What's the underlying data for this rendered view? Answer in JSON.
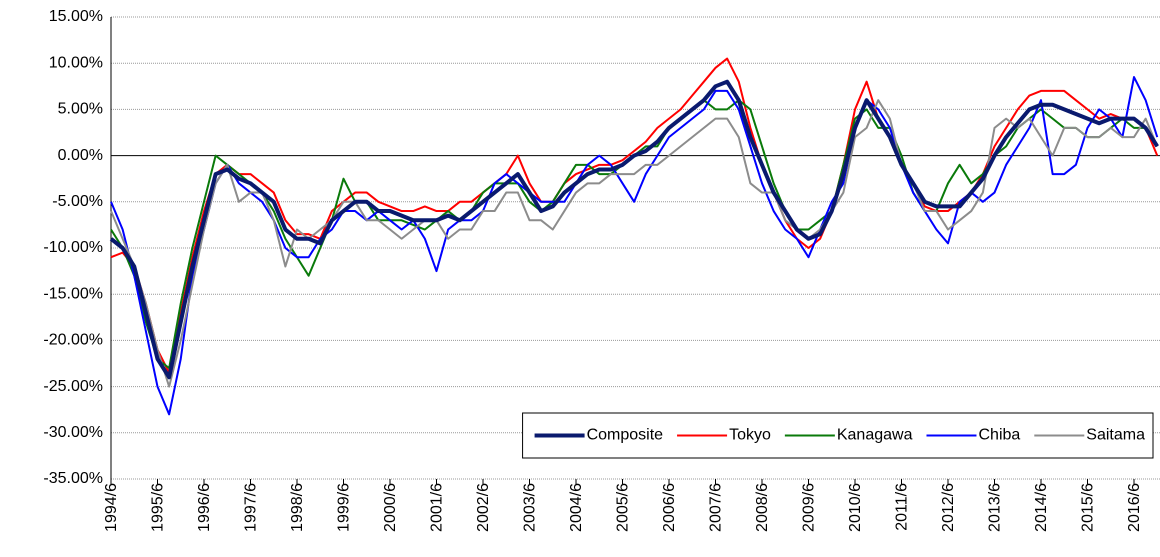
{
  "chart_data": {
    "type": "line",
    "categories": [
      "1994/6",
      null,
      null,
      null,
      "1995/6",
      null,
      null,
      null,
      "1996/6",
      null,
      null,
      null,
      "1997/6",
      null,
      null,
      null,
      "1998/6",
      null,
      null,
      null,
      "1999/6",
      null,
      null,
      null,
      "2000/6",
      null,
      null,
      null,
      "2001/6",
      null,
      null,
      null,
      "2002/6",
      null,
      null,
      null,
      "2003/6",
      null,
      null,
      null,
      "2004/6",
      null,
      null,
      null,
      "2005/6",
      null,
      null,
      null,
      "2006/6",
      null,
      null,
      null,
      "2007/6",
      null,
      null,
      null,
      "2008/6",
      null,
      null,
      null,
      "2009/6",
      null,
      null,
      null,
      "2010/6",
      null,
      null,
      null,
      "2011/6",
      null,
      null,
      null,
      "2012/6",
      null,
      null,
      null,
      "2013/6",
      null,
      null,
      null,
      "2014/6",
      null,
      null,
      null,
      "2015/6",
      null,
      null,
      null,
      "2016/6",
      null,
      null
    ],
    "series": [
      {
        "name": "Composite",
        "color": "#0a1a6e",
        "width": 4,
        "values": [
          -9,
          -10,
          -12,
          -17,
          -22,
          -24,
          -18,
          -12,
          -7,
          -2,
          -1.5,
          -2.5,
          -3,
          -4,
          -5,
          -8,
          -9,
          -9,
          -9.5,
          -7,
          -6,
          -5,
          -5,
          -6,
          -6,
          -6.5,
          -7,
          -7,
          -7,
          -6.5,
          -7,
          -6,
          -5,
          -4,
          -3,
          -2,
          -4,
          -6,
          -5.5,
          -4,
          -3,
          -2,
          -1.5,
          -1.5,
          -1,
          0,
          0.5,
          1.5,
          3,
          4,
          5,
          6,
          7.5,
          8,
          6,
          2,
          -1,
          -4,
          -6,
          -8,
          -9,
          -8.5,
          -6,
          -2,
          3,
          6,
          4,
          2,
          -1,
          -3,
          -5,
          -5.5,
          -5.5,
          -5.5,
          -4,
          -2.5,
          0,
          2,
          3.5,
          5,
          5.5,
          5.5,
          5,
          4.5,
          4,
          3.5,
          4,
          4,
          4,
          3,
          1
        ]
      },
      {
        "name": "Tokyo",
        "color": "#ff0000",
        "width": 2,
        "values": [
          -11,
          -10.5,
          -12,
          -16,
          -21,
          -23.5,
          -17,
          -11,
          -6,
          -2,
          -1,
          -2,
          -2,
          -3,
          -4,
          -7,
          -8.5,
          -8.5,
          -9,
          -6,
          -5,
          -4,
          -4,
          -5,
          -5.5,
          -6,
          -6,
          -5.5,
          -6,
          -6,
          -5,
          -5,
          -4,
          -3,
          -2,
          0,
          -3,
          -5,
          -5,
          -3,
          -2,
          -1.5,
          -1,
          -1,
          -0.5,
          0.5,
          1.5,
          3,
          4,
          5,
          6.5,
          8,
          9.5,
          10.5,
          8,
          3,
          -1,
          -4,
          -7,
          -9,
          -10,
          -9,
          -6,
          -1,
          5,
          8,
          4,
          2,
          -1,
          -3,
          -5.5,
          -6,
          -6,
          -5,
          -4,
          -2,
          1,
          3,
          5,
          6.5,
          7,
          7,
          7,
          6,
          5,
          4,
          4.5,
          4,
          4,
          3,
          0
        ]
      },
      {
        "name": "Kanagawa",
        "color": "#0a7a0a",
        "width": 2,
        "values": [
          -8,
          -10,
          -13,
          -18,
          -22,
          -23,
          -16,
          -10,
          -5,
          0,
          -1,
          -2,
          -3,
          -4,
          -6,
          -9,
          -11,
          -13,
          -10,
          -7,
          -2.5,
          -5,
          -5,
          -7,
          -7,
          -7,
          -7.5,
          -8,
          -7,
          -6,
          -7,
          -6,
          -4,
          -3,
          -3,
          -3,
          -5,
          -6,
          -5,
          -3,
          -1,
          -1,
          -2,
          -2,
          -1,
          0,
          1,
          1,
          3,
          4,
          5,
          6,
          5,
          5,
          6,
          5,
          1,
          -3,
          -6,
          -8,
          -8,
          -7,
          -6,
          -1,
          4,
          5,
          3,
          3,
          0,
          -4,
          -6,
          -6,
          -3,
          -1,
          -3,
          -2,
          0,
          1,
          3,
          4,
          5,
          4,
          3,
          3,
          2,
          2,
          3,
          4,
          3,
          3,
          1
        ]
      },
      {
        "name": "Chiba",
        "color": "#0000ff",
        "width": 2,
        "values": [
          -5,
          -8,
          -13,
          -19,
          -25,
          -28,
          -22,
          -13,
          -8,
          -3,
          -1,
          -3,
          -4,
          -5,
          -7,
          -10,
          -11,
          -11,
          -9,
          -8,
          -6,
          -6,
          -7,
          -6,
          -7,
          -8,
          -7,
          -9,
          -12.5,
          -8,
          -7,
          -7,
          -6,
          -3,
          -2,
          -3,
          -4,
          -5,
          -5,
          -5,
          -3,
          -1,
          0,
          -1,
          -3,
          -5,
          -2,
          0,
          2,
          3,
          4,
          5,
          7,
          7,
          5,
          1,
          -3,
          -6,
          -8,
          -9,
          -11,
          -8,
          -5,
          -3,
          3,
          6,
          5,
          3,
          -1,
          -4,
          -6,
          -8,
          -9.5,
          -5,
          -4,
          -5,
          -4,
          -1,
          1,
          3,
          6,
          -2,
          -2,
          -1,
          3,
          5,
          4,
          2,
          8.5,
          6,
          2
        ]
      },
      {
        "name": "Saitama",
        "color": "#8c8c8c",
        "width": 2,
        "values": [
          -6,
          -9,
          -12,
          -16,
          -21,
          -25,
          -20,
          -14,
          -8,
          -3,
          -1,
          -5,
          -4,
          -4,
          -7,
          -12,
          -8,
          -9,
          -8,
          -7,
          -5,
          -5,
          -7,
          -7,
          -8,
          -9,
          -8,
          -7,
          -7,
          -9,
          -8,
          -8,
          -6,
          -6,
          -4,
          -4,
          -7,
          -7,
          -8,
          -6,
          -4,
          -3,
          -3,
          -2,
          -2,
          -2,
          -1,
          -1,
          0,
          1,
          2,
          3,
          4,
          4,
          2,
          -3,
          -4,
          -4,
          -7,
          -8,
          -9,
          -8,
          -6,
          -4,
          2,
          3,
          6,
          4,
          -1,
          -3,
          -6,
          -6,
          -8,
          -7,
          -6,
          -4,
          3,
          4,
          3,
          4,
          2,
          0,
          3,
          3,
          2,
          2,
          3,
          2,
          2,
          4,
          1
        ]
      }
    ],
    "ylim": [
      -35,
      15
    ],
    "yticks": [
      {
        "value": -35,
        "label": "-35.00%"
      },
      {
        "value": -30,
        "label": "-30.00%"
      },
      {
        "value": -25,
        "label": "-25.00%"
      },
      {
        "value": -20,
        "label": "-20.00%"
      },
      {
        "value": -15,
        "label": "-15.00%"
      },
      {
        "value": -10,
        "label": "-10.00%"
      },
      {
        "value": -5,
        "label": "-5.00%"
      },
      {
        "value": 0,
        "label": "0.00%"
      },
      {
        "value": 5,
        "label": "5.00%"
      },
      {
        "value": 10,
        "label": "10.00%"
      },
      {
        "value": 15,
        "label": "15.00%"
      }
    ],
    "grid": true,
    "legend": "lower right"
  }
}
